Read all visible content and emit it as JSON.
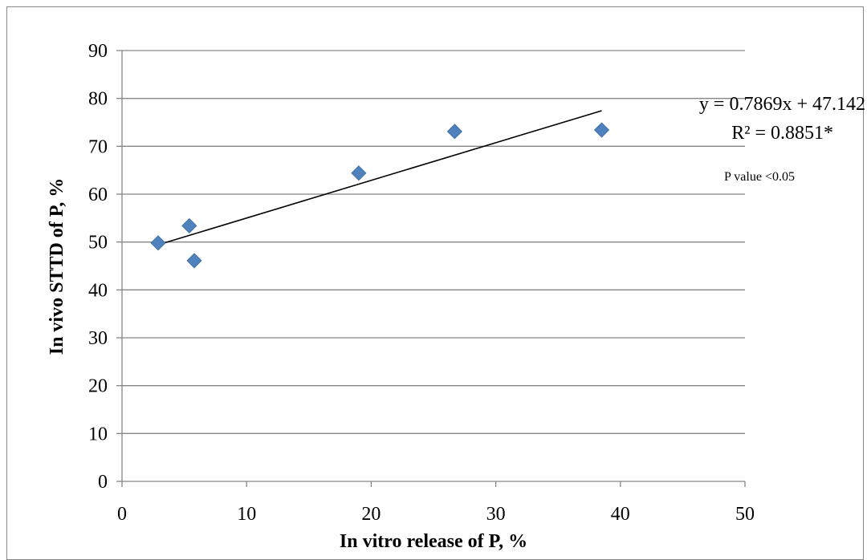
{
  "chart_data": {
    "type": "scatter",
    "xlabel": "In vitro release of P, %",
    "ylabel": "In vivo STTD of P, %",
    "xlim": [
      0,
      50
    ],
    "ylim": [
      0,
      90
    ],
    "x_ticks": [
      0,
      10,
      20,
      30,
      40,
      50
    ],
    "y_ticks": [
      0,
      10,
      20,
      30,
      40,
      50,
      60,
      70,
      80,
      90
    ],
    "grid": "horizontal",
    "marker": "diamond",
    "marker_color": "#4F81BD",
    "series": [
      {
        "points": [
          {
            "x": 2.9,
            "y": 49.8
          },
          {
            "x": 5.4,
            "y": 53.4
          },
          {
            "x": 5.8,
            "y": 46.1
          },
          {
            "x": 19.0,
            "y": 64.4
          },
          {
            "x": 26.7,
            "y": 73.1
          },
          {
            "x": 38.5,
            "y": 73.4
          }
        ]
      }
    ],
    "trendline": {
      "slope": 0.7869,
      "intercept": 47.142,
      "x_range": [
        2.9,
        38.5
      ],
      "color": "#000000"
    },
    "annotations": {
      "equation": "y = 0.7869x + 47.142",
      "r_squared": "R² = 0.8851*",
      "p_value": "P value <0.05"
    }
  }
}
